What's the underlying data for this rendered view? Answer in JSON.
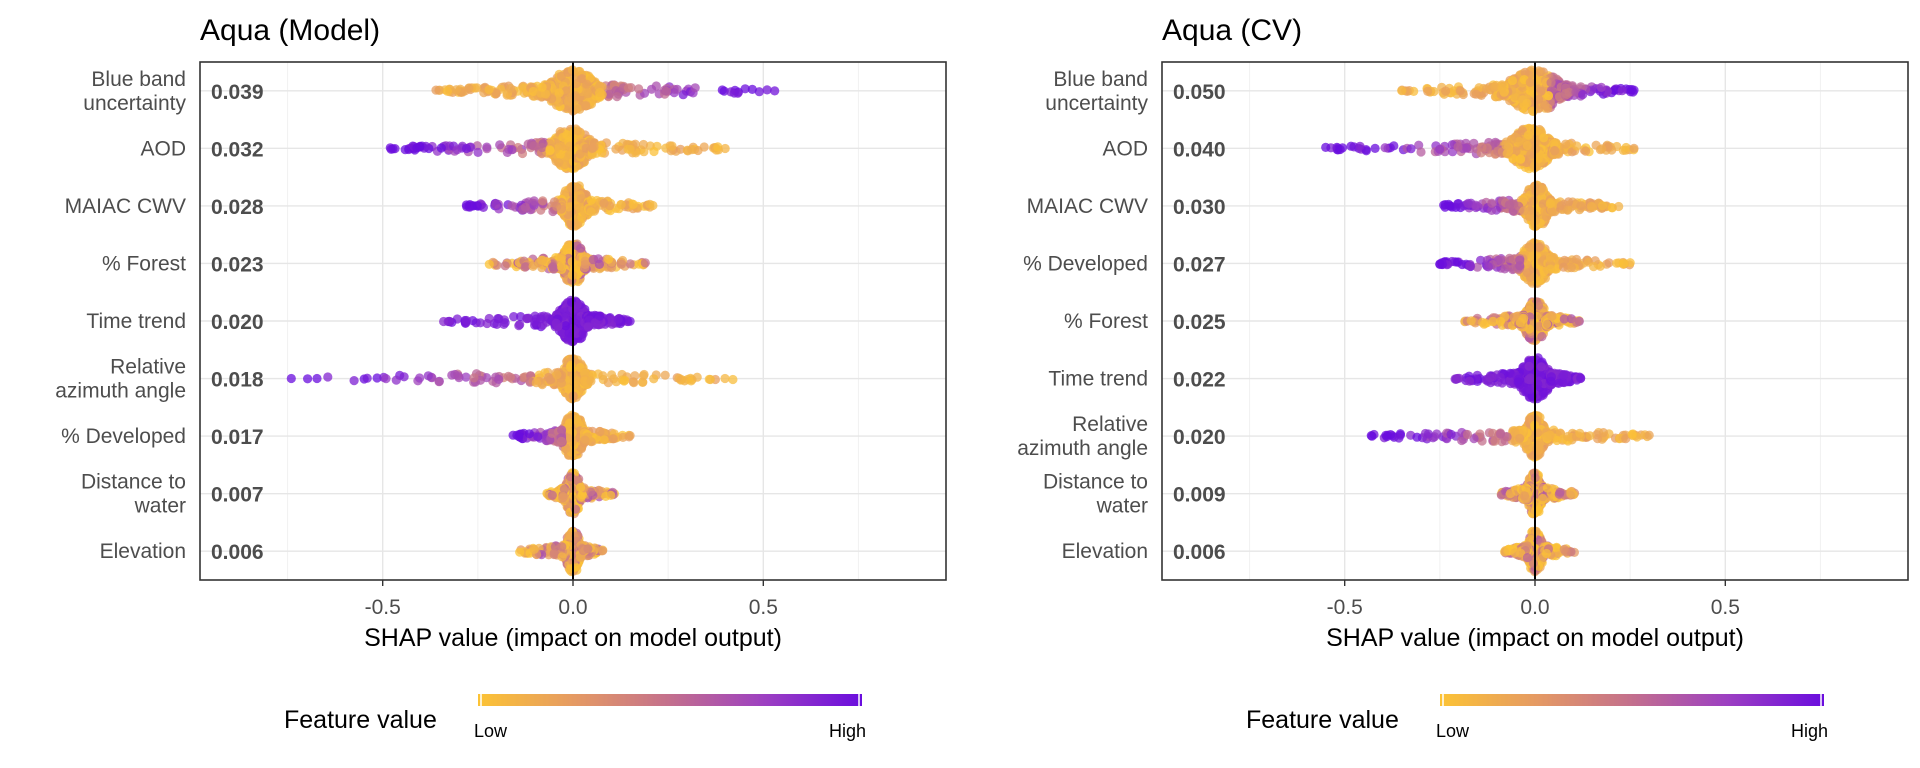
{
  "legend": {
    "title": "Feature value",
    "low_label": "Low",
    "high_label": "High",
    "gradient": [
      "#fcc335",
      "#e59a63",
      "#c36f8d",
      "#9c3fc2",
      "#6a0dde"
    ]
  },
  "colors": {
    "low": "#fcc335",
    "mid": "#e59a63",
    "high": "#6a0dde",
    "zero_line": "#000000",
    "grid": "#e6e6e6",
    "panel_border": "#333333",
    "label_text": "#4d4d4d"
  },
  "chart_data": [
    {
      "type": "scatter",
      "subtype": "beeswarm",
      "title": "Aqua (Model)",
      "xlabel": "SHAP value (impact on model output)",
      "xlim": [
        -0.98,
        0.98
      ],
      "xticks": [
        -0.5,
        0.0,
        0.5
      ],
      "xtick_labels": [
        "-0.5",
        "0.0",
        "0.5"
      ],
      "grid": true,
      "legend_position": "bottom",
      "features": [
        {
          "lines": [
            "Blue band",
            "uncertainty"
          ],
          "importance": "0.039",
          "min": -0.36,
          "max": 0.53,
          "core": [
            -0.07,
            0.07
          ],
          "outliers": [
            -0.36,
            -0.33,
            0.24,
            0.53
          ],
          "high_side": "right"
        },
        {
          "lines": [
            "AOD"
          ],
          "importance": "0.032",
          "min": -0.48,
          "max": 0.4,
          "core": [
            -0.06,
            0.05
          ],
          "outliers": [
            -0.48,
            -0.41,
            0.15,
            0.4
          ],
          "high_side": "left"
        },
        {
          "lines": [
            "MAIAC CWV"
          ],
          "importance": "0.028",
          "min": -0.28,
          "max": 0.21,
          "core": [
            -0.03,
            0.04
          ],
          "outliers": [
            -0.28,
            0.21
          ],
          "high_side": "left"
        },
        {
          "lines": [
            "% Forest"
          ],
          "importance": "0.023",
          "min": -0.22,
          "max": 0.19,
          "core": [
            -0.03,
            0.03
          ],
          "outliers": [
            -0.22,
            0.19
          ],
          "high_side": "mixed"
        },
        {
          "lines": [
            "Time trend"
          ],
          "importance": "0.020",
          "min": -0.34,
          "max": 0.15,
          "core": [
            -0.04,
            0.04
          ],
          "outliers": [
            -0.34,
            -0.28,
            0.15
          ],
          "high_side": "all"
        },
        {
          "lines": [
            "Relative",
            "azimuth angle"
          ],
          "importance": "0.018",
          "min": -0.74,
          "max": 0.42,
          "core": [
            -0.03,
            0.03
          ],
          "outliers": [
            -0.74,
            -0.26,
            0.42
          ],
          "high_side": "left"
        },
        {
          "lines": [
            "% Developed"
          ],
          "importance": "0.017",
          "min": -0.16,
          "max": 0.15,
          "core": [
            -0.03,
            0.03
          ],
          "outliers": [
            0.15
          ],
          "high_side": "left"
        },
        {
          "lines": [
            "Distance to",
            "water"
          ],
          "importance": "0.007",
          "min": -0.07,
          "max": 0.11,
          "core": [
            -0.02,
            0.02
          ],
          "outliers": [],
          "high_side": "mixed"
        },
        {
          "lines": [
            "Elevation"
          ],
          "importance": "0.006",
          "min": -0.14,
          "max": 0.08,
          "core": [
            -0.02,
            0.02
          ],
          "outliers": [
            -0.14
          ],
          "high_side": "mixed"
        }
      ]
    },
    {
      "type": "scatter",
      "subtype": "beeswarm",
      "title": "Aqua (CV)",
      "xlabel": "SHAP value (impact on model output)",
      "xlim": [
        -0.98,
        0.98
      ],
      "xticks": [
        -0.5,
        0.0,
        0.5
      ],
      "xtick_labels": [
        "-0.5",
        "0.0",
        "0.5"
      ],
      "grid": true,
      "legend_position": "bottom",
      "features": [
        {
          "lines": [
            "Blue band",
            "uncertainty"
          ],
          "importance": "0.050",
          "min": -0.35,
          "max": 0.26,
          "core": [
            -0.08,
            0.08
          ],
          "outliers": [
            -0.35,
            0.26
          ],
          "high_side": "right"
        },
        {
          "lines": [
            "AOD"
          ],
          "importance": "0.040",
          "min": -0.55,
          "max": 0.26,
          "core": [
            -0.07,
            0.05
          ],
          "outliers": [
            -0.55,
            -0.42,
            0.26
          ],
          "high_side": "left"
        },
        {
          "lines": [
            "MAIAC CWV"
          ],
          "importance": "0.030",
          "min": -0.24,
          "max": 0.22,
          "core": [
            -0.03,
            0.04
          ],
          "outliers": [
            -0.24,
            0.22
          ],
          "high_side": "left"
        },
        {
          "lines": [
            "% Developed"
          ],
          "importance": "0.027",
          "min": -0.25,
          "max": 0.25,
          "core": [
            -0.04,
            0.04
          ],
          "outliers": [
            -0.25,
            0.25
          ],
          "high_side": "left"
        },
        {
          "lines": [
            "% Forest"
          ],
          "importance": "0.025",
          "min": -0.19,
          "max": 0.12,
          "core": [
            -0.03,
            0.03
          ],
          "outliers": [],
          "high_side": "mixed"
        },
        {
          "lines": [
            "Time trend"
          ],
          "importance": "0.022",
          "min": -0.21,
          "max": 0.12,
          "core": [
            -0.04,
            0.04
          ],
          "outliers": [
            -0.21,
            0.12
          ],
          "high_side": "all"
        },
        {
          "lines": [
            "Relative",
            "azimuth angle"
          ],
          "importance": "0.020",
          "min": -0.43,
          "max": 0.3,
          "core": [
            -0.03,
            0.03
          ],
          "outliers": [
            -0.43,
            0.3
          ],
          "high_side": "left"
        },
        {
          "lines": [
            "Distance to",
            "water"
          ],
          "importance": "0.009",
          "min": -0.09,
          "max": 0.11,
          "core": [
            -0.02,
            0.02
          ],
          "outliers": [],
          "high_side": "mixed"
        },
        {
          "lines": [
            "Elevation"
          ],
          "importance": "0.006",
          "min": -0.08,
          "max": 0.11,
          "core": [
            -0.02,
            0.02
          ],
          "outliers": [
            -0.08
          ],
          "high_side": "mixed"
        }
      ]
    }
  ]
}
